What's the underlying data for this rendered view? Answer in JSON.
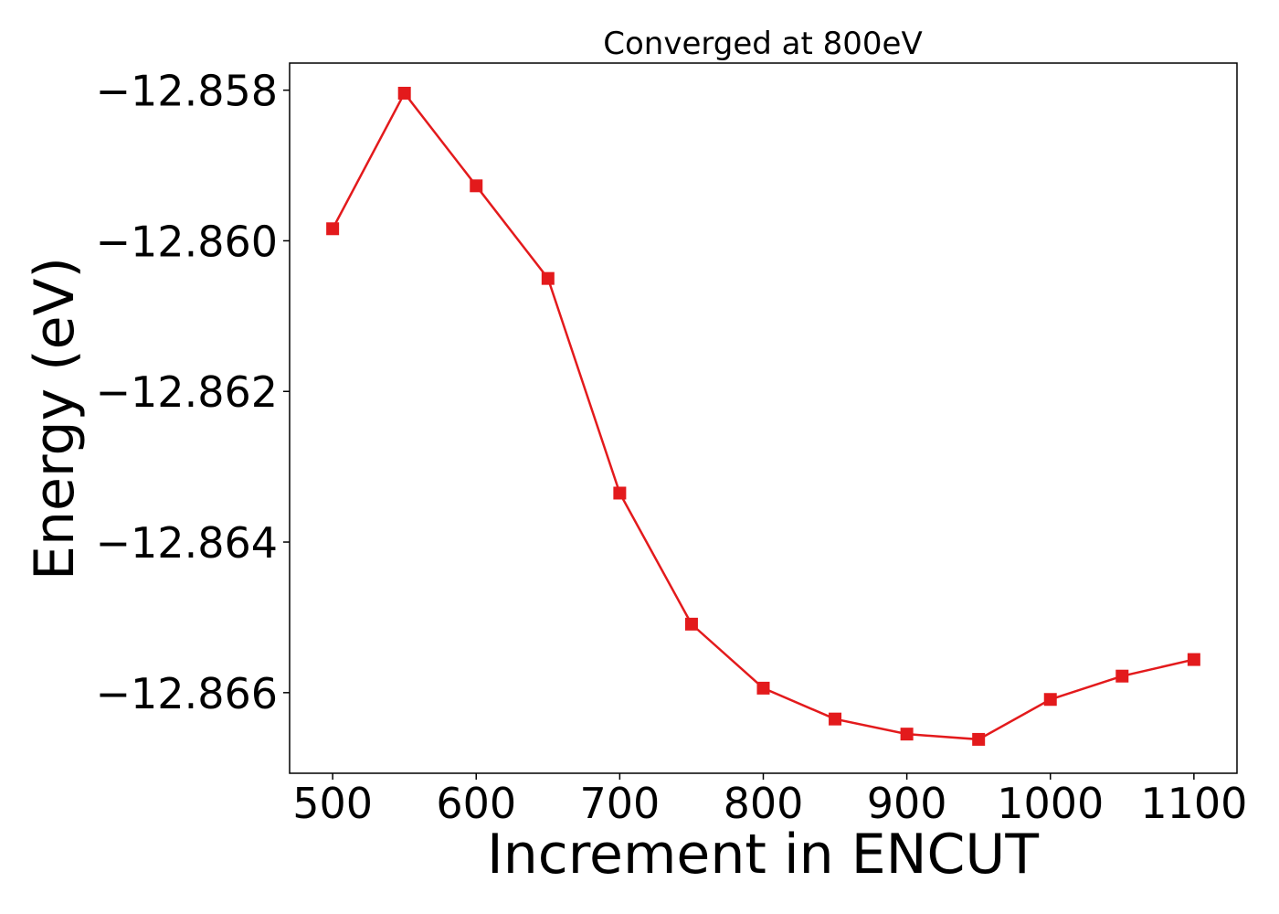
{
  "chart_data": {
    "type": "line",
    "title": "Converged at 800eV",
    "xlabel": "Increment in ENCUT",
    "ylabel": "Energy (eV)",
    "x": [
      500,
      550,
      600,
      650,
      700,
      750,
      800,
      850,
      900,
      950,
      1000,
      1050,
      1100
    ],
    "series": [
      {
        "values": [
          -12.85984,
          -12.85804,
          -12.85927,
          -12.8605,
          -12.86335,
          -12.86509,
          -12.86594,
          -12.86635,
          -12.86655,
          -12.86662,
          -12.86609,
          -12.86578,
          -12.86556
        ],
        "color": "#e31a1c",
        "marker": "square"
      }
    ],
    "xlim": [
      470,
      1130
    ],
    "ylim": [
      -12.86707,
      -12.85764
    ],
    "xticks": [
      500,
      600,
      700,
      800,
      900,
      1000,
      1100
    ],
    "xtick_labels": [
      "500",
      "600",
      "700",
      "800",
      "900",
      "1000",
      "1100"
    ],
    "yticks": [
      -12.858,
      -12.86,
      -12.862,
      -12.864,
      -12.866
    ],
    "ytick_labels": [
      "−12.858",
      "−12.860",
      "−12.862",
      "−12.864",
      "−12.866"
    ],
    "grid": false,
    "legend": false
  }
}
